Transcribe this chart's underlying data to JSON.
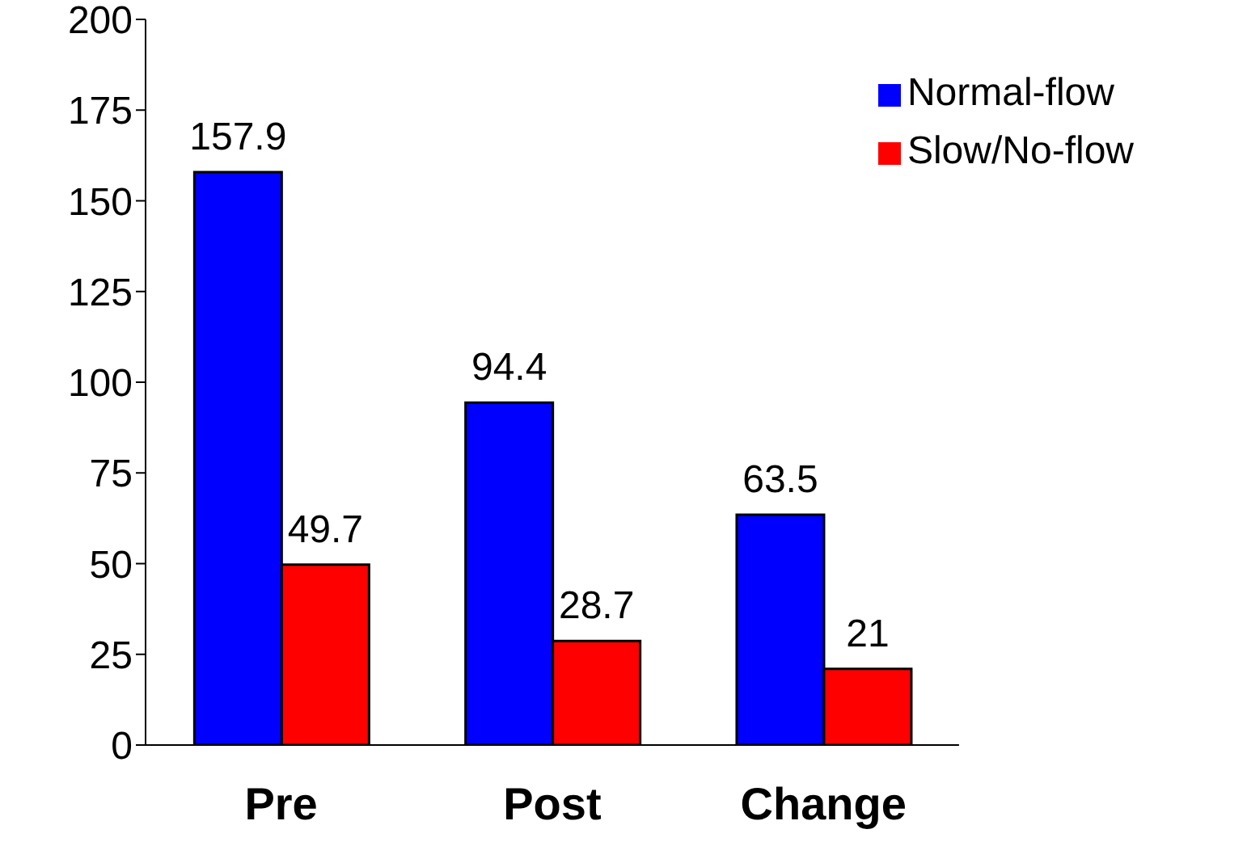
{
  "chart_data": {
    "type": "bar",
    "categories": [
      "Pre",
      "Post",
      "Change"
    ],
    "series": [
      {
        "name": "Normal-flow",
        "color": "#0000ff",
        "values": [
          157.9,
          94.4,
          63.5
        ]
      },
      {
        "name": "Slow/No-flow",
        "color": "#ff0000",
        "values": [
          49.7,
          28.7,
          21
        ]
      }
    ],
    "ylim": [
      0,
      200
    ],
    "yticks": [
      0,
      25,
      50,
      75,
      100,
      125,
      150,
      175,
      200
    ],
    "data_labels": true,
    "legend": "top right"
  }
}
